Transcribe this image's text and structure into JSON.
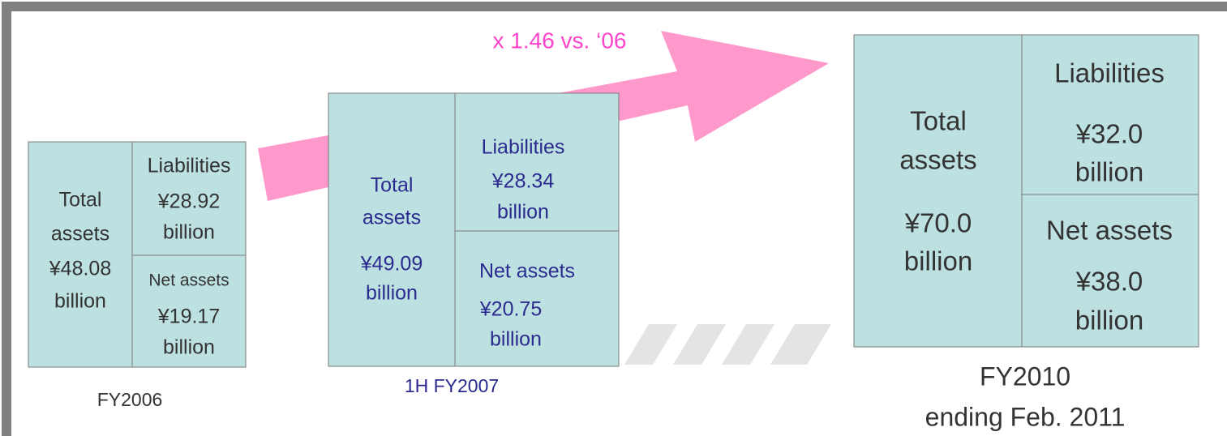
{
  "annotation": "x 1.46 vs. ‘06",
  "periods": [
    {
      "label": [
        "FY2006"
      ],
      "total": [
        "Total",
        "assets",
        "¥48.08",
        "billion"
      ],
      "liabilities": [
        "Liabilities",
        "¥28.92",
        "billion"
      ],
      "net_assets": [
        "Net assets",
        "¥19.17",
        "billion"
      ]
    },
    {
      "label": [
        "1H FY2007"
      ],
      "total": [
        "Total",
        "assets",
        "¥49.09",
        "billion"
      ],
      "liabilities": [
        "Liabilities",
        "¥28.34",
        "billion"
      ],
      "net_assets": [
        "Net assets",
        "¥20.75",
        "billion"
      ]
    },
    {
      "label": [
        "FY2010",
        "ending Feb. 2011"
      ],
      "total": [
        "Total",
        "assets",
        "¥70.0",
        "billion"
      ],
      "liabilities": [
        "Liabilities",
        "¥32.0",
        "billion"
      ],
      "net_assets": [
        "Net assets",
        "¥38.0",
        "billion"
      ]
    }
  ]
}
